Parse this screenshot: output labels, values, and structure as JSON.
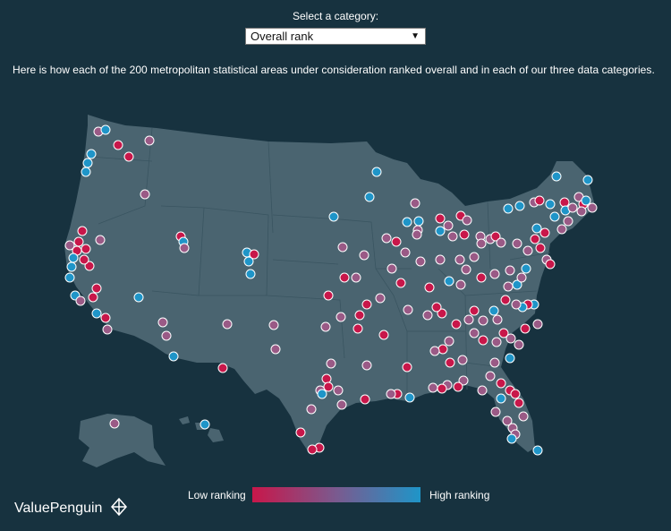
{
  "header": {
    "select_label": "Select a category:",
    "select_value": "Overall rank",
    "intro": "Here is how each of the 200 metropolitan statistical areas under consideration ranked overall and in each of our three data categories."
  },
  "legend": {
    "low_label": "Low ranking",
    "high_label": "High ranking",
    "low_color": "#c8174a",
    "mid_color": "#7a5a8f",
    "high_color": "#1f95c8"
  },
  "brand": {
    "name": "ValuePenguin",
    "icon": "penguin-logo-icon"
  },
  "map": {
    "land_color": "#4a6470",
    "border_color": "#3a5561",
    "background_color": "#17323f",
    "dot_count": 200
  }
}
